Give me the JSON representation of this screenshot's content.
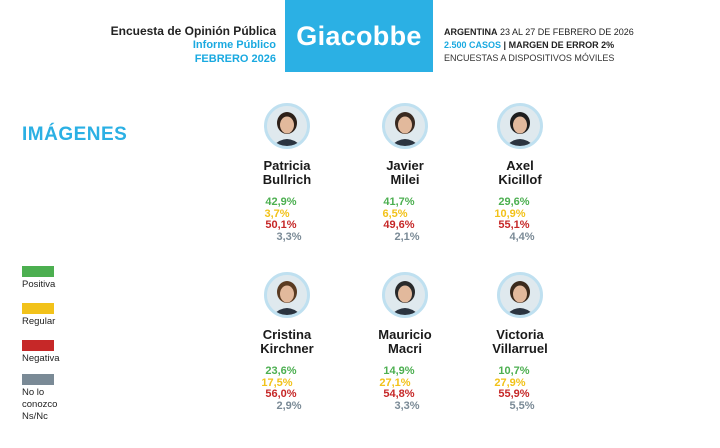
{
  "header": {
    "survey_title": "Encuesta de Opinión Pública",
    "report_label": "Informe Público",
    "period": "FEBRERO 2026",
    "brand": "Giacobbe",
    "country": "ARGENTINA",
    "dates": "23 AL 27 DE FEBRERO DE 2026",
    "cases": "2.500 CASOS",
    "separator": "|",
    "margin": "MARGEN DE ERROR 2%",
    "method": "ENCUESTAS A DISPOSITIVOS MÓVILES"
  },
  "chart_data": {
    "type": "table",
    "title": "IMÁGENES",
    "legend": [
      {
        "label": "Positiva",
        "color": "#4caf50"
      },
      {
        "label": "Regular",
        "color": "#f2c21a"
      },
      {
        "label": "Negativa",
        "color": "#c62828"
      },
      {
        "label": "No lo conozco",
        "label2": "Ns/Nc",
        "color": "#7a8a96"
      }
    ],
    "candidates": [
      {
        "first": "Patricia",
        "last": "Bullrich",
        "values": [
          "42,9%",
          "3,7%",
          "50,1%",
          "3,3%"
        ]
      },
      {
        "first": "Javier",
        "last": "Milei",
        "values": [
          "41,7%",
          "6,5%",
          "49,6%",
          "2,1%"
        ]
      },
      {
        "first": "Axel",
        "last": "Kicillof",
        "values": [
          "29,6%",
          "10,9%",
          "55,1%",
          "4,4%"
        ]
      },
      {
        "first": "Cristina",
        "last": "Kirchner",
        "values": [
          "23,6%",
          "17,5%",
          "56,0%",
          "2,9%"
        ]
      },
      {
        "first": "Mauricio",
        "last": "Macri",
        "values": [
          "14,9%",
          "27,1%",
          "54,8%",
          "3,3%"
        ]
      },
      {
        "first": "Victoria",
        "last": "Villarruel",
        "values": [
          "10,7%",
          "27,9%",
          "55,9%",
          "5,5%"
        ]
      }
    ]
  }
}
